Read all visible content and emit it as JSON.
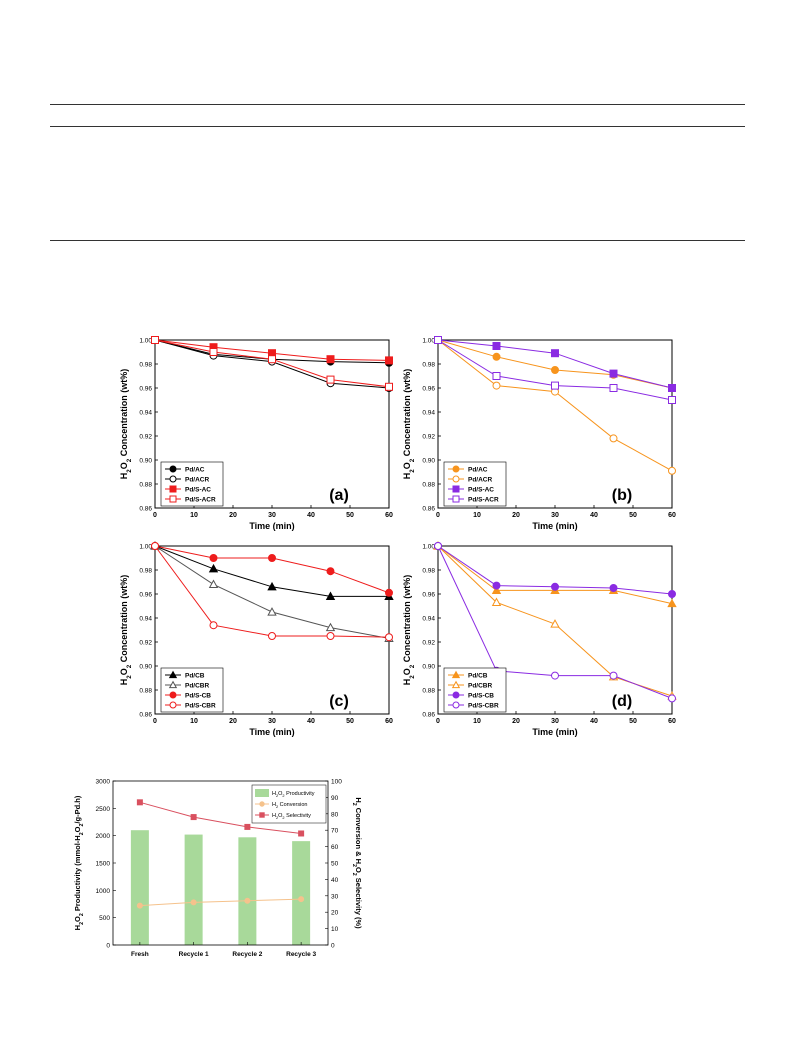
{
  "colors": {
    "black": "#000000",
    "red": "#ee1c1c",
    "orange": "#f7941d",
    "purple": "#8a2be2",
    "gray": "#555555",
    "bar_green": "#a8d99a",
    "conversion": "#f5c28c",
    "selectivity": "#d9505f"
  },
  "chart_data": [
    {
      "id": "a",
      "type": "line",
      "panel_label": "(a)",
      "xlabel": "Time (min)",
      "ylabel": "H2O2 Concentration (wt%)",
      "xlim": [
        0,
        60
      ],
      "ylim": [
        0.86,
        1.0
      ],
      "xticks": [
        "0",
        "10",
        "20",
        "30",
        "40",
        "50",
        "60"
      ],
      "yticks": [
        "0.86",
        "0.88",
        "0.90",
        "0.92",
        "0.94",
        "0.96",
        "0.98",
        "1.00"
      ],
      "x": [
        0,
        15,
        30,
        45,
        60
      ],
      "series": [
        {
          "name": "Pd/AC",
          "color": "#000000",
          "marker": "circle",
          "filled": true,
          "values": [
            1.0,
            0.988,
            0.984,
            0.982,
            0.981
          ]
        },
        {
          "name": "Pd/ACR",
          "color": "#000000",
          "marker": "circle",
          "filled": false,
          "values": [
            1.0,
            0.987,
            0.982,
            0.964,
            0.96
          ]
        },
        {
          "name": "Pd/S-AC",
          "color": "#ee1c1c",
          "marker": "square",
          "filled": true,
          "values": [
            1.0,
            0.994,
            0.989,
            0.984,
            0.983
          ]
        },
        {
          "name": "Pd/S-ACR",
          "color": "#ee1c1c",
          "marker": "square",
          "filled": false,
          "values": [
            1.0,
            0.99,
            0.984,
            0.967,
            0.961
          ]
        }
      ]
    },
    {
      "id": "b",
      "type": "line",
      "panel_label": "(b)",
      "xlabel": "Time (min)",
      "ylabel": "H2O2 Concentration (wt%)",
      "xlim": [
        0,
        60
      ],
      "ylim": [
        0.86,
        1.0
      ],
      "xticks": [
        "0",
        "10",
        "20",
        "30",
        "40",
        "50",
        "60"
      ],
      "yticks": [
        "0.86",
        "0.88",
        "0.90",
        "0.92",
        "0.94",
        "0.96",
        "0.98",
        "1.00"
      ],
      "x": [
        0,
        15,
        30,
        45,
        60
      ],
      "series": [
        {
          "name": "Pd/AC",
          "color": "#f7941d",
          "marker": "circle",
          "filled": true,
          "values": [
            1.0,
            0.986,
            0.975,
            0.971,
            0.96
          ]
        },
        {
          "name": "Pd/ACR",
          "color": "#f7941d",
          "marker": "circle",
          "filled": false,
          "values": [
            1.0,
            0.962,
            0.957,
            0.918,
            0.891
          ]
        },
        {
          "name": "Pd/S-AC",
          "color": "#8a2be2",
          "marker": "square",
          "filled": true,
          "values": [
            1.0,
            0.995,
            0.989,
            0.972,
            0.96
          ]
        },
        {
          "name": "Pd/S-ACR",
          "color": "#8a2be2",
          "marker": "square",
          "filled": false,
          "values": [
            1.0,
            0.97,
            0.962,
            0.96,
            0.95
          ]
        }
      ]
    },
    {
      "id": "c",
      "type": "line",
      "panel_label": "(c)",
      "xlabel": "Time (min)",
      "ylabel": "H2O2 Concentration (wt%)",
      "xlim": [
        0,
        60
      ],
      "ylim": [
        0.86,
        1.0
      ],
      "xticks": [
        "0",
        "10",
        "20",
        "30",
        "40",
        "50",
        "60"
      ],
      "yticks": [
        "0.86",
        "0.88",
        "0.90",
        "0.92",
        "0.94",
        "0.96",
        "0.98",
        "1.00"
      ],
      "x": [
        0,
        15,
        30,
        45,
        60
      ],
      "series": [
        {
          "name": "Pd/CB",
          "color": "#000000",
          "marker": "triangle",
          "filled": true,
          "values": [
            1.0,
            0.981,
            0.966,
            0.958,
            0.958
          ]
        },
        {
          "name": "Pd/CBR",
          "color": "#555555",
          "marker": "triangle",
          "filled": false,
          "values": [
            1.0,
            0.968,
            0.945,
            0.932,
            0.923
          ]
        },
        {
          "name": "Pd/S-CB",
          "color": "#ee1c1c",
          "marker": "circle",
          "filled": true,
          "values": [
            1.0,
            0.99,
            0.99,
            0.979,
            0.961
          ]
        },
        {
          "name": "Pd/S-CBR",
          "color": "#ee1c1c",
          "marker": "circle",
          "filled": false,
          "values": [
            1.0,
            0.934,
            0.925,
            0.925,
            0.924
          ]
        }
      ]
    },
    {
      "id": "d",
      "type": "line",
      "panel_label": "(d)",
      "xlabel": "Time (min)",
      "ylabel": "H2O2 Concentration (wt%)",
      "xlim": [
        0,
        60
      ],
      "ylim": [
        0.86,
        1.0
      ],
      "xticks": [
        "0",
        "10",
        "20",
        "30",
        "40",
        "50",
        "60"
      ],
      "yticks": [
        "0.86",
        "0.88",
        "0.90",
        "0.92",
        "0.94",
        "0.96",
        "0.98",
        "1.00"
      ],
      "x": [
        0,
        15,
        30,
        45,
        60
      ],
      "series": [
        {
          "name": "Pd/CB",
          "color": "#f7941d",
          "marker": "triangle",
          "filled": true,
          "values": [
            1.0,
            0.963,
            0.963,
            0.963,
            0.952
          ]
        },
        {
          "name": "Pd/CBR",
          "color": "#f7941d",
          "marker": "triangle",
          "filled": false,
          "values": [
            1.0,
            0.953,
            0.935,
            0.891,
            0.875
          ]
        },
        {
          "name": "Pd/S-CB",
          "color": "#8a2be2",
          "marker": "circle",
          "filled": true,
          "values": [
            1.0,
            0.967,
            0.966,
            0.965,
            0.96
          ]
        },
        {
          "name": "Pd/S-CBR",
          "color": "#8a2be2",
          "marker": "circle",
          "filled": false,
          "values": [
            1.0,
            0.896,
            0.892,
            0.892,
            0.873
          ]
        }
      ]
    },
    {
      "id": "e",
      "type": "bar",
      "categories": [
        "Fresh",
        "Recycle 1",
        "Recycle 2",
        "Recycle 3"
      ],
      "ylabel": "H2O2 Productivity (mmol-H2O2/g-Pd.h)",
      "ylabel_right": "H2 Conversion & H2O2 Selectivity (%)",
      "ylim": [
        0,
        3000
      ],
      "ylim_right": [
        0,
        100
      ],
      "yticks": [
        "0",
        "500",
        "1000",
        "1500",
        "2000",
        "2500",
        "3000"
      ],
      "yticks_right": [
        "0",
        "10",
        "20",
        "30",
        "40",
        "50",
        "60",
        "70",
        "80",
        "90",
        "100"
      ],
      "series": [
        {
          "name": "H2O2 Productivity",
          "type": "bar",
          "axis": "left",
          "color": "#a8d99a",
          "values": [
            2100,
            2020,
            1970,
            1900
          ]
        },
        {
          "name": "H2 Conversion",
          "type": "line",
          "axis": "right",
          "color": "#f5c28c",
          "marker": "circle",
          "values": [
            24,
            26,
            27,
            28
          ]
        },
        {
          "name": "H2O2 Selectivity",
          "type": "line",
          "axis": "right",
          "color": "#d9505f",
          "marker": "square",
          "values": [
            87,
            78,
            72,
            68
          ]
        }
      ]
    }
  ]
}
